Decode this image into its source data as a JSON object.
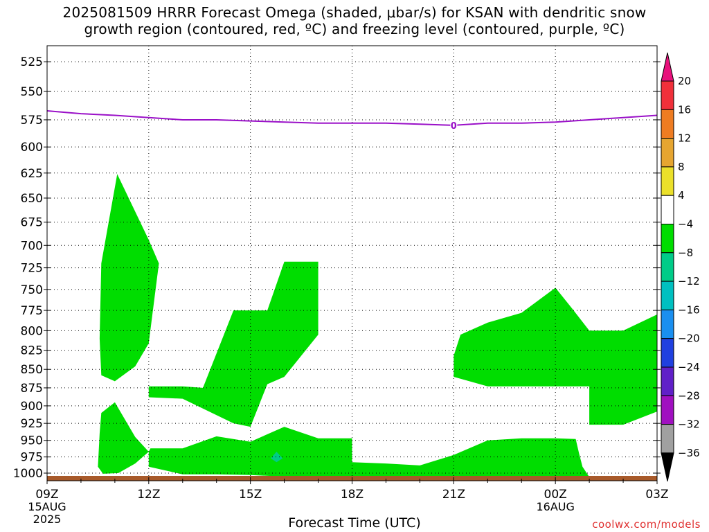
{
  "chart_title_line1": "2025081509 HRRR Forecast Omega (shaded, μbar/s) for KSAN with dendritic snow",
  "chart_title_line2": "growth region (contoured, red, ºC) and freezing level (contoured, purple, ºC)",
  "xlabel": "Forecast Time (UTC)",
  "watermark": "coolwx.com/models",
  "chart_data": {
    "type": "heatmap",
    "y_axis": {
      "ticks": [
        525,
        550,
        575,
        600,
        625,
        650,
        675,
        700,
        725,
        750,
        775,
        800,
        825,
        850,
        875,
        900,
        925,
        950,
        975,
        1000
      ],
      "range": [
        512,
        1012
      ],
      "scale": "log-pressure",
      "grid": true
    },
    "x_axis": {
      "ticks": [
        {
          "hour": 0,
          "label": "09Z",
          "date": "15AUG",
          "year": "2025"
        },
        {
          "hour": 3,
          "label": "12Z"
        },
        {
          "hour": 6,
          "label": "15Z"
        },
        {
          "hour": 9,
          "label": "18Z"
        },
        {
          "hour": 12,
          "label": "21Z"
        },
        {
          "hour": 15,
          "label": "00Z",
          "date": "16AUG"
        },
        {
          "hour": 18,
          "label": "03Z"
        }
      ],
      "range": [
        0,
        18
      ],
      "grid": true
    },
    "colorbar": {
      "labels": [
        "20",
        "16",
        "12",
        "8",
        "4",
        "−4",
        "−8",
        "−12",
        "−16",
        "−20",
        "−24",
        "−28",
        "−32",
        "−36"
      ],
      "colors": [
        "#e8117c",
        "#f0303a",
        "#ee7c22",
        "#e6a530",
        "#ebe02a",
        "#ffffff",
        "#00dd00",
        "#00cc88",
        "#00c0c0",
        "#1a8ff0",
        "#2040e0",
        "#6020c8",
        "#a010c0",
        "#a0a0a0",
        "#000000"
      ]
    },
    "freezing_level": {
      "color": "#9a10c8",
      "label": "0",
      "points": [
        [
          0,
          567
        ],
        [
          1,
          569.5
        ],
        [
          2,
          571
        ],
        [
          3,
          573
        ],
        [
          4,
          575
        ],
        [
          5,
          575
        ],
        [
          6,
          576
        ],
        [
          7,
          577
        ],
        [
          8,
          578
        ],
        [
          9,
          578
        ],
        [
          10,
          578
        ],
        [
          11,
          579
        ],
        [
          12,
          580
        ],
        [
          13,
          578
        ],
        [
          14,
          578
        ],
        [
          15,
          577
        ],
        [
          16,
          575
        ],
        [
          17,
          573
        ],
        [
          18,
          571
        ]
      ]
    },
    "omega_regions": [
      {
        "value_range": [
          -8,
          -4
        ],
        "color": "#00dd00",
        "points": [
          [
            2.07,
            626
          ],
          [
            1.6,
            720
          ],
          [
            1.55,
            810
          ],
          [
            1.6,
            858
          ],
          [
            2.0,
            866
          ],
          [
            2.6,
            846
          ],
          [
            3.0,
            816
          ],
          [
            3.3,
            720
          ],
          [
            3.0,
            694
          ]
        ]
      },
      {
        "value_range": [
          -8,
          -4
        ],
        "color": "#00dd00",
        "points": [
          [
            1.55,
            940
          ],
          [
            1.5,
            990
          ],
          [
            1.65,
            1001
          ],
          [
            2.1,
            1000
          ],
          [
            2.6,
            985
          ],
          [
            3.0,
            967
          ],
          [
            2.6,
            945
          ],
          [
            2.0,
            895
          ],
          [
            1.6,
            910
          ]
        ]
      },
      {
        "value_range": [
          -8,
          -4
        ],
        "color": "#00dd00",
        "points": [
          [
            3.0,
            967
          ],
          [
            3.05,
            962
          ],
          [
            4.0,
            962
          ],
          [
            5.0,
            944
          ],
          [
            6.0,
            952
          ],
          [
            7.0,
            930
          ],
          [
            8.0,
            947
          ],
          [
            9.0,
            947
          ],
          [
            9.0,
            983
          ],
          [
            10.0,
            985
          ],
          [
            11.0,
            988
          ],
          [
            12.0,
            972
          ],
          [
            13.0,
            950
          ],
          [
            14.0,
            947
          ],
          [
            15.0,
            947
          ],
          [
            15.6,
            948
          ],
          [
            15.7,
            970
          ],
          [
            15.8,
            990
          ],
          [
            16.0,
            1006
          ],
          [
            14.0,
            1010
          ],
          [
            12.0,
            1010
          ],
          [
            10.0,
            1010
          ],
          [
            8.0,
            1008
          ],
          [
            6.0,
            1003
          ],
          [
            5.0,
            1002
          ],
          [
            4.0,
            1002
          ],
          [
            3.0,
            990
          ]
        ]
      },
      {
        "value_range": [
          -8,
          -4
        ],
        "color": "#00dd00",
        "points": [
          [
            7.0,
            718
          ],
          [
            7.65,
            718
          ],
          [
            8.0,
            718
          ],
          [
            8.0,
            805
          ],
          [
            7.0,
            860
          ],
          [
            6.5,
            870
          ],
          [
            6.0,
            930
          ],
          [
            5.5,
            925
          ],
          [
            4.0,
            890
          ],
          [
            3.0,
            888
          ],
          [
            3.0,
            873
          ],
          [
            4.0,
            873
          ],
          [
            4.6,
            875
          ],
          [
            5.5,
            775
          ],
          [
            6.5,
            775
          ],
          [
            7.0,
            718
          ]
        ]
      },
      {
        "value_range": [
          -8,
          -4
        ],
        "color": "#00dd00",
        "points": [
          [
            15.0,
            748
          ],
          [
            15.5,
            773
          ],
          [
            16.0,
            800
          ],
          [
            17.0,
            800
          ],
          [
            18.0,
            780
          ],
          [
            18.0,
            908
          ],
          [
            17.0,
            927
          ],
          [
            16.0,
            927
          ],
          [
            16.0,
            873
          ],
          [
            13.0,
            873
          ],
          [
            12.0,
            860
          ],
          [
            12.0,
            832
          ],
          [
            12.2,
            805
          ],
          [
            13.0,
            790
          ],
          [
            14.0,
            778
          ]
        ]
      },
      {
        "value_range": [
          -12,
          -8
        ],
        "color": "#00cc88",
        "points": [
          [
            6.77,
            967
          ],
          [
            6.95,
            977
          ],
          [
            6.77,
            983
          ],
          [
            6.6,
            977
          ]
        ]
      }
    ],
    "surface": {
      "color": "#a85a2a"
    }
  }
}
